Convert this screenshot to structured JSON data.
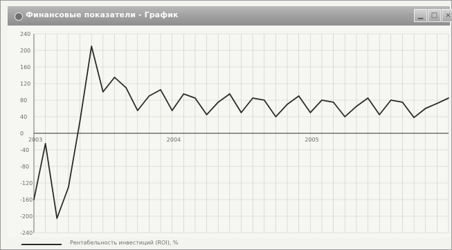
{
  "window": {
    "title": "Финансовые показатели - График",
    "buttons": {
      "minimize_icon": "minimize-icon",
      "maximize_icon": "maximize-icon",
      "close_icon": "close-icon"
    }
  },
  "colors": {
    "line": "#2a2a2a",
    "grid": "#c9c9c9",
    "axis": "#555555",
    "titlebar": "#a0a0a0"
  },
  "chart_data": {
    "type": "line",
    "title": "",
    "xlabel": "",
    "ylabel": "",
    "ylim": [
      -240,
      240
    ],
    "yticks": [
      240,
      200,
      160,
      120,
      80,
      40,
      0,
      -40,
      -80,
      -120,
      -160,
      -200,
      -240
    ],
    "ytick_labels": [
      "240",
      "200",
      "160",
      "120",
      "80",
      "40",
      "0",
      "-40",
      "-80",
      "-120",
      "-160",
      "-200",
      "-240"
    ],
    "x_axis_labels": [
      {
        "label": "2003",
        "index": 0
      },
      {
        "label": "2004",
        "index": 12
      },
      {
        "label": "2005",
        "index": 24
      }
    ],
    "grid": true,
    "legend_position": "bottom-left",
    "series": [
      {
        "name": "Рентабельность инвестиций (ROI), %",
        "x": [
          "2003-01",
          "2003-02",
          "2003-03",
          "2003-04",
          "2003-05",
          "2003-06",
          "2003-07",
          "2003-08",
          "2003-09",
          "2003-10",
          "2003-11",
          "2003-12",
          "2004-01",
          "2004-02",
          "2004-03",
          "2004-04",
          "2004-05",
          "2004-06",
          "2004-07",
          "2004-08",
          "2004-09",
          "2004-10",
          "2004-11",
          "2004-12",
          "2005-01",
          "2005-02",
          "2005-03",
          "2005-04",
          "2005-05",
          "2005-06",
          "2005-07",
          "2005-08",
          "2005-09",
          "2005-10",
          "2005-11",
          "2005-12",
          "2006-01"
        ],
        "values": [
          -160,
          -25,
          -205,
          -130,
          30,
          210,
          100,
          135,
          110,
          55,
          90,
          105,
          55,
          95,
          85,
          45,
          75,
          95,
          50,
          85,
          80,
          40,
          70,
          90,
          50,
          80,
          75,
          40,
          65,
          85,
          45,
          80,
          75,
          38,
          60,
          72,
          85
        ]
      }
    ]
  }
}
